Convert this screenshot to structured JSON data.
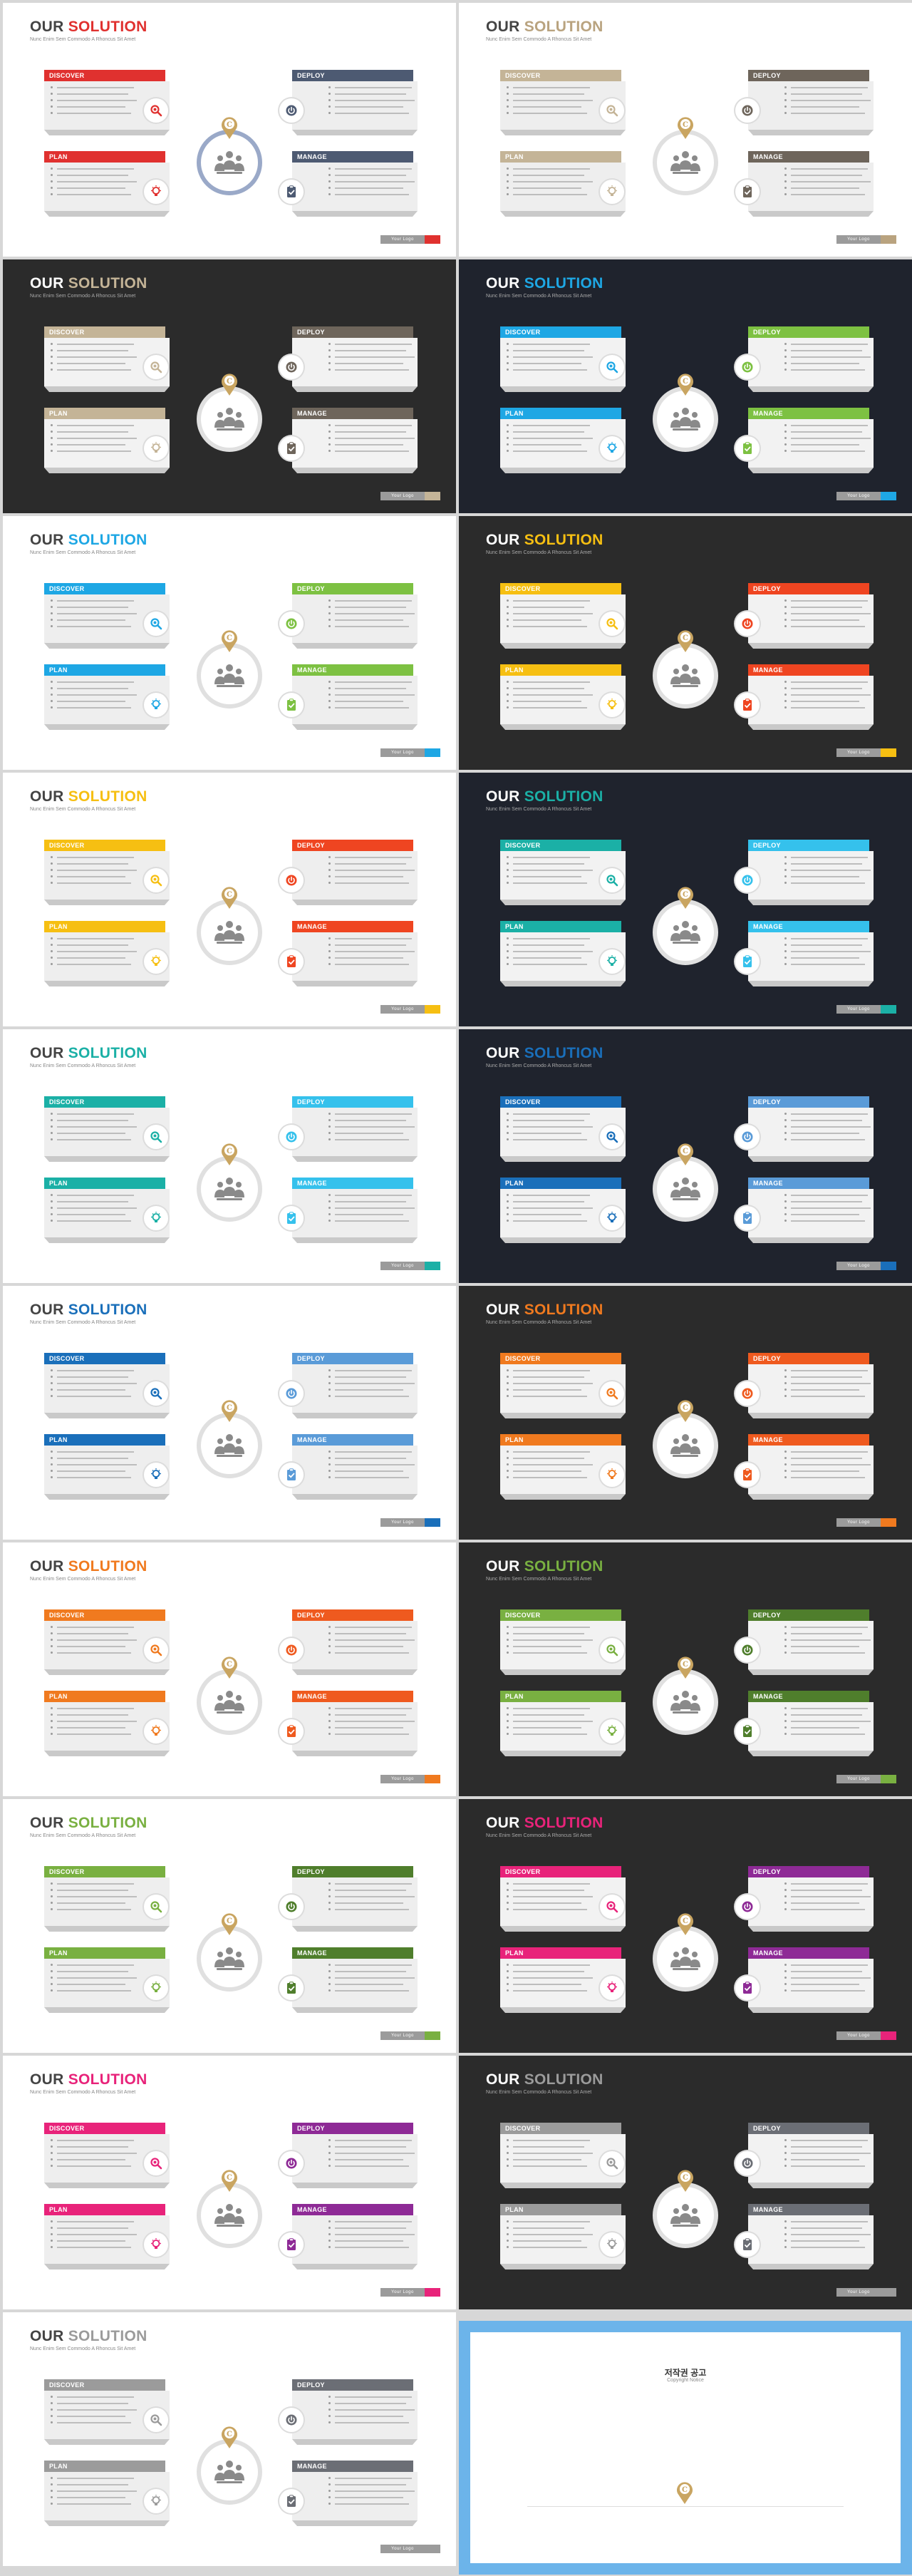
{
  "slide": {
    "title_a": "OUR",
    "title_b": "SOLUTION",
    "subtitle": "Nunc Enim Sem Commodo A Rhoncus Sit Amet",
    "cards": {
      "discover": "DISCOVER",
      "deploy": "DEPLOY",
      "plan": "PLAN",
      "manage": "MANAGE"
    },
    "footer": "Your Logo"
  },
  "icons": {
    "discover": "magnifier-icon",
    "deploy": "power-icon",
    "plan": "lightbulb-icon",
    "manage": "clipboard-check-icon",
    "center": "team-people-icon",
    "pin": "c-logo-pin-icon"
  },
  "themes": [
    {
      "bg": "light",
      "accent": "#e0312f",
      "tl": "#e0312f",
      "tr": "#4d5a72",
      "bl": "#e0312f",
      "br": "#4d5a72",
      "ring": "blue"
    },
    {
      "bg": "light",
      "accent": "#b9a37f",
      "tl": "#c4b497",
      "tr": "#6e655b",
      "bl": "#c4b497",
      "br": "#6e655b",
      "ring": "grey"
    },
    {
      "bg": "dark",
      "accent": "#c4b497",
      "tl": "#c4b497",
      "tr": "#6e655b",
      "bl": "#c4b497",
      "br": "#6e655b",
      "ring": "grey"
    },
    {
      "bg": "navy",
      "accent": "#1ea7e4",
      "tl": "#1ea7e4",
      "tr": "#7dc142",
      "bl": "#1ea7e4",
      "br": "#7dc142",
      "ring": "grey"
    },
    {
      "bg": "light",
      "accent": "#1ea7e4",
      "tl": "#1ea7e4",
      "tr": "#7dc142",
      "bl": "#1ea7e4",
      "br": "#7dc142",
      "ring": "grey"
    },
    {
      "bg": "dark",
      "accent": "#f6bf12",
      "tl": "#f6bf12",
      "tr": "#ef4521",
      "bl": "#f6bf12",
      "br": "#ef4521",
      "ring": "grey"
    },
    {
      "bg": "light",
      "accent": "#f6bf12",
      "tl": "#f6bf12",
      "tr": "#ef4521",
      "bl": "#f6bf12",
      "br": "#ef4521",
      "ring": "grey"
    },
    {
      "bg": "navy",
      "accent": "#1bb0a6",
      "tl": "#1bb0a6",
      "tr": "#35c1ec",
      "bl": "#1bb0a6",
      "br": "#35c1ec",
      "ring": "grey"
    },
    {
      "bg": "light",
      "accent": "#1bb0a6",
      "tl": "#1bb0a6",
      "tr": "#35c1ec",
      "bl": "#1bb0a6",
      "br": "#35c1ec",
      "ring": "grey"
    },
    {
      "bg": "navy",
      "accent": "#1a6fba",
      "tl": "#1a6fba",
      "tr": "#5a9bd8",
      "bl": "#1a6fba",
      "br": "#5a9bd8",
      "ring": "grey"
    },
    {
      "bg": "light",
      "accent": "#1a6fba",
      "tl": "#1a6fba",
      "tr": "#5a9bd8",
      "bl": "#1a6fba",
      "br": "#5a9bd8",
      "ring": "grey"
    },
    {
      "bg": "dark",
      "accent": "#f07a1f",
      "tl": "#f07a1f",
      "tr": "#ef5a1f",
      "bl": "#f07a1f",
      "br": "#ef5a1f",
      "ring": "grey"
    },
    {
      "bg": "light",
      "accent": "#f07a1f",
      "tl": "#f07a1f",
      "tr": "#ef5a1f",
      "bl": "#f07a1f",
      "br": "#ef5a1f",
      "ring": "grey"
    },
    {
      "bg": "dark",
      "accent": "#79b041",
      "tl": "#79b041",
      "tr": "#4f7e2c",
      "bl": "#79b041",
      "br": "#4f7e2c",
      "ring": "grey"
    },
    {
      "bg": "light",
      "accent": "#79b041",
      "tl": "#79b041",
      "tr": "#4f7e2c",
      "bl": "#79b041",
      "br": "#4f7e2c",
      "ring": "grey"
    },
    {
      "bg": "dark",
      "accent": "#e8237a",
      "tl": "#e8237a",
      "tr": "#8e2a96",
      "bl": "#e8237a",
      "br": "#8e2a96",
      "ring": "grey"
    },
    {
      "bg": "light",
      "accent": "#e8237a",
      "tl": "#e8237a",
      "tr": "#8e2a96",
      "bl": "#e8237a",
      "br": "#8e2a96",
      "ring": "grey"
    },
    {
      "bg": "dark",
      "accent": "#9b9b9b",
      "tl": "#9b9b9b",
      "tr": "#6b6e75",
      "bl": "#9b9b9b",
      "br": "#6b6e75",
      "ring": "grey"
    },
    {
      "bg": "light",
      "accent": "#9b9b9b",
      "tl": "#9b9b9b",
      "tr": "#6b6e75",
      "bl": "#9b9b9b",
      "br": "#6b6e75",
      "ring": "grey"
    }
  ],
  "copyright": {
    "title": "저작권 공고",
    "subtitle": "Copyright Notice",
    "paragraphs": [
      "",
      "",
      "",
      "",
      ""
    ]
  }
}
